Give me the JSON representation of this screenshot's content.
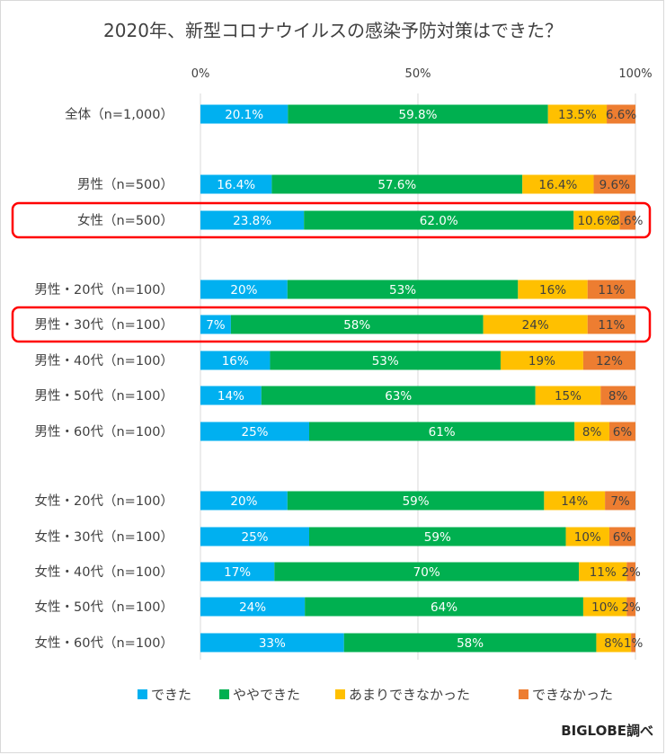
{
  "chart_data": {
    "type": "bar",
    "stacked": true,
    "orientation": "horizontal",
    "title": "2020年、新型コロナウイルスの感染予防対策はできた？",
    "xlim": [
      0,
      100
    ],
    "x_ticks": [
      "0%",
      "50%",
      "100%"
    ],
    "grid": true,
    "legend_position": "bottom",
    "categories": [
      "全体（n=1,000）",
      "男性（n=500）",
      "女性（n=500）",
      "男性・20代（n=100）",
      "男性・30代（n=100）",
      "男性・40代（n=100）",
      "男性・50代（n=100）",
      "男性・60代（n=100）",
      "女性・20代（n=100）",
      "女性・30代（n=100）",
      "女性・40代（n=100）",
      "女性・50代（n=100）",
      "女性・60代（n=100）"
    ],
    "series": [
      {
        "name": "できた",
        "color": "#00b0f0",
        "values": [
          20.1,
          16.4,
          23.8,
          20,
          7,
          16,
          14,
          25,
          20,
          25,
          17,
          24,
          33
        ],
        "labels": [
          "20.1%",
          "16.4%",
          "23.8%",
          "20%",
          "7%",
          "16%",
          "14%",
          "25%",
          "20%",
          "25%",
          "17%",
          "24%",
          "33%"
        ]
      },
      {
        "name": "ややできた",
        "color": "#00b050",
        "values": [
          59.8,
          57.6,
          62.0,
          53,
          58,
          53,
          63,
          61,
          59,
          59,
          70,
          64,
          58
        ],
        "labels": [
          "59.8%",
          "57.6%",
          "62.0%",
          "53%",
          "58%",
          "53%",
          "63%",
          "61%",
          "59%",
          "59%",
          "70%",
          "64%",
          "58%"
        ]
      },
      {
        "name": "あまりできなかった",
        "color": "#ffc000",
        "values": [
          13.5,
          16.4,
          10.6,
          16,
          24,
          19,
          15,
          8,
          14,
          10,
          11,
          10,
          8
        ],
        "labels": [
          "13.5%",
          "16.4%",
          "10.6%",
          "16%",
          "24%",
          "19%",
          "15%",
          "8%",
          "14%",
          "10%",
          "11%",
          "10%",
          "8%"
        ]
      },
      {
        "name": "できなかった",
        "color": "#ed7d31",
        "values": [
          6.6,
          9.6,
          3.6,
          11,
          11,
          12,
          8,
          6,
          7,
          6,
          2,
          2,
          1
        ],
        "labels": [
          "6.6%",
          "9.6%",
          "3.6%",
          "11%",
          "11%",
          "12%",
          "8%",
          "6%",
          "7%",
          "6%",
          "2%",
          "2%",
          "1%"
        ]
      }
    ],
    "highlighted_categories": [
      "女性（n=500）",
      "男性・30代（n=100）"
    ],
    "highlight_color": "#ff0000"
  },
  "credit": "BIGLOBE調べ"
}
